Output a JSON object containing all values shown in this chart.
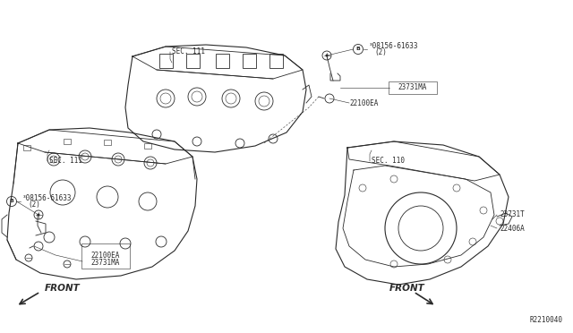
{
  "bg_color": "#ffffff",
  "line_color": "#2a2a2a",
  "diagram_id": "R2210040",
  "labels": {
    "sec111_left": "SEC. 111",
    "sec111_right": "SEC. 111",
    "sec110": "SEC. 110",
    "bolt_top_line1": "³08156-61633",
    "bolt_top_line2": "(2)",
    "bolt_left_line1": "³08156-61633",
    "bolt_left_line2": "(2)",
    "part_23731MA_top": "23731MA",
    "part_22100EA_top": "22100EA",
    "part_23731MA_bot": "23731MA",
    "part_22100EA_bot": "22100EA",
    "part_23731T": "23731T",
    "part_22406A": "22406A",
    "front_left": "FRONT",
    "front_right": "FRONT",
    "diagram_num": "R2210040"
  },
  "font_size_section": 5.5,
  "font_size_partnum": 5.5,
  "font_size_front": 7.5,
  "font_size_diag": 5.5,
  "font_size_B": 4.5
}
